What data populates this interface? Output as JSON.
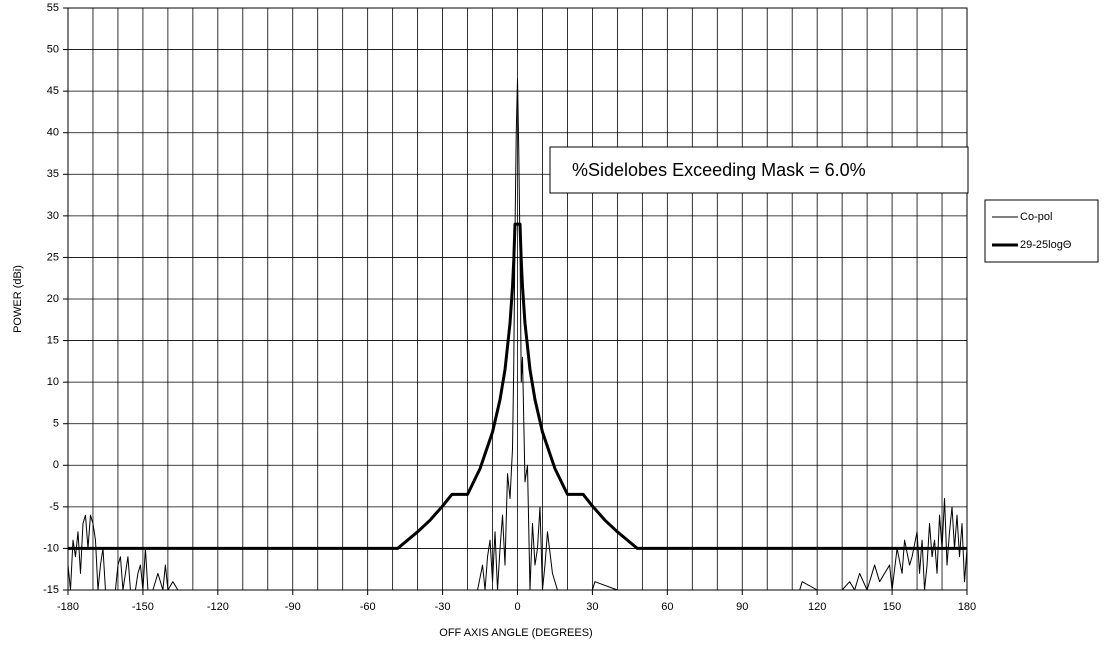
{
  "chart_data": {
    "type": "line",
    "annotation": "%Sidelobes Exceeding Mask = 6.0%",
    "xlabel": "OFF AXIS ANGLE (DEGREES)",
    "ylabel": "POWER (dBi)",
    "xlim": [
      -180,
      180
    ],
    "xticks": [
      -180,
      -150,
      -120,
      -90,
      -60,
      -30,
      0,
      30,
      60,
      90,
      120,
      150,
      180
    ],
    "xminorticks": [
      -170,
      -160,
      -140,
      -130,
      -110,
      -100,
      -80,
      -70,
      -50,
      -40,
      -20,
      -10,
      10,
      20,
      40,
      50,
      70,
      80,
      100,
      110,
      130,
      140,
      160,
      170
    ],
    "ylim": [
      -15,
      55
    ],
    "yticks": [
      -15,
      -10,
      -5,
      0,
      5,
      10,
      15,
      20,
      25,
      30,
      35,
      40,
      45,
      50,
      55
    ],
    "grid": true,
    "legend": "right",
    "series": [
      {
        "name": "Co-pol",
        "color": "#000000",
        "width": 1,
        "x": [
          -180,
          -179,
          -178,
          -177,
          -176,
          -175,
          -174,
          -173,
          -172,
          -171,
          -170,
          -169,
          -168,
          -167,
          -166,
          -165,
          -163,
          -161,
          -160,
          -159,
          -158,
          -157,
          -156,
          -155,
          -153,
          -152,
          -151,
          -150,
          -149,
          -148,
          -146,
          -144,
          -142,
          -141,
          -140,
          -138,
          -136,
          -120,
          -60,
          -16,
          -14,
          -13,
          -12,
          -11,
          -10,
          -9,
          -8,
          -7,
          -6,
          -5,
          -4,
          -3,
          -2,
          -1.5,
          -1,
          -0.5,
          0,
          0.5,
          1,
          1.5,
          2,
          3,
          4,
          5,
          6,
          7,
          8,
          9,
          10,
          11,
          12,
          14,
          16,
          20,
          30,
          31,
          40,
          100,
          113,
          114,
          120,
          125,
          130,
          133,
          135,
          137,
          140,
          143,
          145,
          147,
          149,
          150,
          152,
          154,
          155,
          157,
          158,
          160,
          161,
          162,
          163,
          164,
          165,
          166,
          167,
          168,
          169,
          170,
          171,
          172,
          173,
          174,
          175,
          176,
          177,
          178,
          179,
          180
        ],
        "values": [
          -12,
          -15,
          -9,
          -11,
          -8,
          -13,
          -7,
          -6,
          -10,
          -6,
          -7,
          -9,
          -15,
          -12,
          -10,
          -15,
          -15,
          -15,
          -12,
          -11,
          -15,
          -13,
          -11,
          -15,
          -15,
          -13,
          -12,
          -15,
          -10,
          -15,
          -15,
          -13,
          -15,
          -12,
          -15,
          -14,
          -15,
          -15,
          -15,
          -15,
          -12,
          -15,
          -11,
          -9,
          -14,
          -8,
          -15,
          -10,
          -6,
          -12,
          -1,
          -4,
          2,
          12,
          28,
          40,
          46.5,
          38,
          26,
          10,
          13,
          -2,
          0,
          -15,
          -7,
          -12,
          -10,
          -5,
          -15,
          -12,
          -8,
          -13,
          -15,
          -15,
          -15,
          -14,
          -15,
          -15,
          -15,
          -14,
          -15,
          -15,
          -15,
          -14,
          -15,
          -13,
          -15,
          -12,
          -14,
          -13,
          -12,
          -15,
          -10,
          -13,
          -9,
          -12,
          -11,
          -8,
          -13,
          -9,
          -15,
          -12,
          -7,
          -11,
          -9,
          -13,
          -6,
          -10,
          -4,
          -12,
          -8,
          -5,
          -10,
          -6,
          -11,
          -7,
          -14,
          -10
        ]
      },
      {
        "name": "29-25logΘ",
        "color": "#000000",
        "width": 3,
        "x": [
          -180,
          -48,
          -40,
          -35,
          -30,
          -26.3,
          -20,
          -15,
          -10,
          -7,
          -5,
          -3,
          -2,
          -1.5,
          -1,
          1,
          1.5,
          2,
          3,
          5,
          7,
          10,
          15,
          20,
          26.3,
          30,
          35,
          40,
          48,
          180
        ],
        "values": [
          -10,
          -10,
          -8,
          -6.6,
          -4.9,
          -3.5,
          -3.5,
          -0.4,
          4,
          7.9,
          11.5,
          17.1,
          21.5,
          24.6,
          29,
          29,
          24.6,
          21.5,
          17.1,
          11.5,
          7.9,
          4,
          -0.4,
          -3.5,
          -3.5,
          -4.9,
          -6.6,
          -8,
          -10,
          -10
        ]
      }
    ]
  }
}
